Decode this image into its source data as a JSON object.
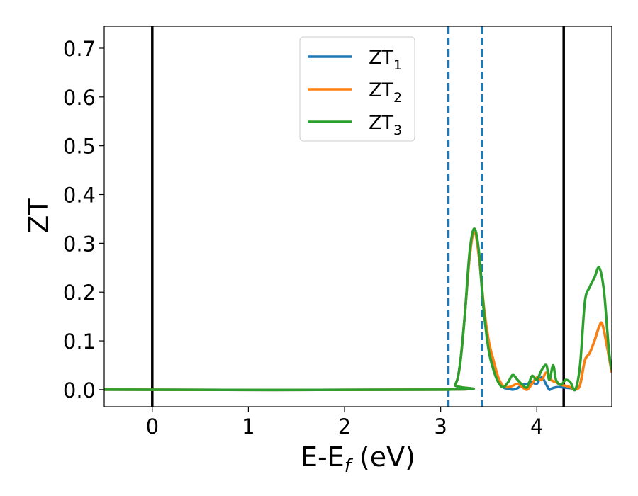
{
  "chart_data": {
    "type": "line",
    "title": "",
    "xlabel": {
      "main": "E-E",
      "sub": "f",
      "unit": " (eV)"
    },
    "ylabel": "ZT",
    "xlim": [
      -0.5,
      4.78
    ],
    "ylim": [
      -0.035,
      0.745
    ],
    "xticks": [
      0,
      1,
      2,
      3,
      4
    ],
    "xtick_labels": [
      "0",
      "1",
      "2",
      "3",
      "4"
    ],
    "yticks": [
      0.0,
      0.1,
      0.2,
      0.3,
      0.4,
      0.5,
      0.6,
      0.7
    ],
    "ytick_labels": [
      "0.0",
      "0.1",
      "0.2",
      "0.3",
      "0.4",
      "0.5",
      "0.6",
      "0.7"
    ],
    "grid": false,
    "legend_position": "top-center",
    "vlines_solid": [
      0.0,
      4.28
    ],
    "vlines_dashed": [
      3.08,
      3.43
    ],
    "vline_solid_color": "#000000",
    "vline_dashed_color": "#1f77b4",
    "series": [
      {
        "name": "ZT",
        "sub": "1",
        "color": "#1f77b4",
        "points": [
          [
            -0.5,
            0
          ],
          [
            3.05,
            0
          ],
          [
            3.15,
            0.01
          ],
          [
            3.2,
            0.05
          ],
          [
            3.25,
            0.15
          ],
          [
            3.3,
            0.27
          ],
          [
            3.35,
            0.325
          ],
          [
            3.4,
            0.27
          ],
          [
            3.45,
            0.16
          ],
          [
            3.5,
            0.09
          ],
          [
            3.55,
            0.05
          ],
          [
            3.6,
            0.02
          ],
          [
            3.65,
            0.005
          ],
          [
            3.7,
            0.002
          ],
          [
            3.75,
            0.0
          ],
          [
            3.8,
            0.003
          ],
          [
            3.85,
            0.01
          ],
          [
            3.9,
            0.012
          ],
          [
            3.95,
            0.015
          ],
          [
            4.0,
            0.012
          ],
          [
            4.05,
            0.025
          ],
          [
            4.1,
            0.01
          ],
          [
            4.13,
            0.0
          ],
          [
            4.15,
            0.002
          ],
          [
            4.2,
            0.005
          ],
          [
            4.25,
            0.005
          ],
          [
            4.3,
            0.004
          ],
          [
            4.35,
            0.003
          ],
          [
            4.4,
            0.0
          ],
          [
            4.45,
            0.01
          ],
          [
            4.5,
            0.06
          ],
          [
            4.55,
            0.075
          ],
          [
            4.6,
            0.1
          ],
          [
            4.65,
            0.13
          ],
          [
            4.68,
            0.135
          ],
          [
            4.72,
            0.1
          ],
          [
            4.78,
            0.035
          ]
        ]
      },
      {
        "name": "ZT",
        "sub": "2",
        "color": "#ff7f0e",
        "points": [
          [
            -0.5,
            0
          ],
          [
            3.05,
            0
          ],
          [
            3.15,
            0.01
          ],
          [
            3.2,
            0.05
          ],
          [
            3.25,
            0.15
          ],
          [
            3.3,
            0.27
          ],
          [
            3.35,
            0.325
          ],
          [
            3.4,
            0.27
          ],
          [
            3.45,
            0.17
          ],
          [
            3.5,
            0.1
          ],
          [
            3.55,
            0.06
          ],
          [
            3.6,
            0.025
          ],
          [
            3.65,
            0.008
          ],
          [
            3.7,
            0.005
          ],
          [
            3.75,
            0.008
          ],
          [
            3.8,
            0.012
          ],
          [
            3.85,
            0.005
          ],
          [
            3.9,
            0.0
          ],
          [
            3.95,
            0.012
          ],
          [
            4.0,
            0.025
          ],
          [
            4.05,
            0.02
          ],
          [
            4.1,
            0.035
          ],
          [
            4.15,
            0.02
          ],
          [
            4.2,
            0.015
          ],
          [
            4.25,
            0.01
          ],
          [
            4.3,
            0.008
          ],
          [
            4.35,
            0.005
          ],
          [
            4.4,
            0.0
          ],
          [
            4.45,
            0.01
          ],
          [
            4.5,
            0.06
          ],
          [
            4.55,
            0.075
          ],
          [
            4.6,
            0.1
          ],
          [
            4.65,
            0.13
          ],
          [
            4.68,
            0.135
          ],
          [
            4.72,
            0.1
          ],
          [
            4.78,
            0.035
          ]
        ]
      },
      {
        "name": "ZT",
        "sub": "3",
        "color": "#2ca02c",
        "points": [
          [
            -0.5,
            0
          ],
          [
            3.05,
            0
          ],
          [
            3.15,
            0.01
          ],
          [
            3.2,
            0.05
          ],
          [
            3.25,
            0.15
          ],
          [
            3.3,
            0.28
          ],
          [
            3.35,
            0.33
          ],
          [
            3.4,
            0.28
          ],
          [
            3.45,
            0.16
          ],
          [
            3.5,
            0.08
          ],
          [
            3.55,
            0.04
          ],
          [
            3.6,
            0.015
          ],
          [
            3.65,
            0.005
          ],
          [
            3.7,
            0.015
          ],
          [
            3.75,
            0.03
          ],
          [
            3.8,
            0.02
          ],
          [
            3.85,
            0.01
          ],
          [
            3.9,
            0.005
          ],
          [
            3.95,
            0.028
          ],
          [
            4.0,
            0.02
          ],
          [
            4.05,
            0.04
          ],
          [
            4.1,
            0.05
          ],
          [
            4.13,
            0.02
          ],
          [
            4.17,
            0.05
          ],
          [
            4.2,
            0.02
          ],
          [
            4.25,
            0.01
          ],
          [
            4.3,
            0.02
          ],
          [
            4.35,
            0.015
          ],
          [
            4.4,
            0.0
          ],
          [
            4.45,
            0.05
          ],
          [
            4.5,
            0.18
          ],
          [
            4.55,
            0.21
          ],
          [
            4.6,
            0.23
          ],
          [
            4.65,
            0.25
          ],
          [
            4.7,
            0.2
          ],
          [
            4.75,
            0.08
          ],
          [
            4.78,
            0.04
          ]
        ]
      }
    ]
  }
}
